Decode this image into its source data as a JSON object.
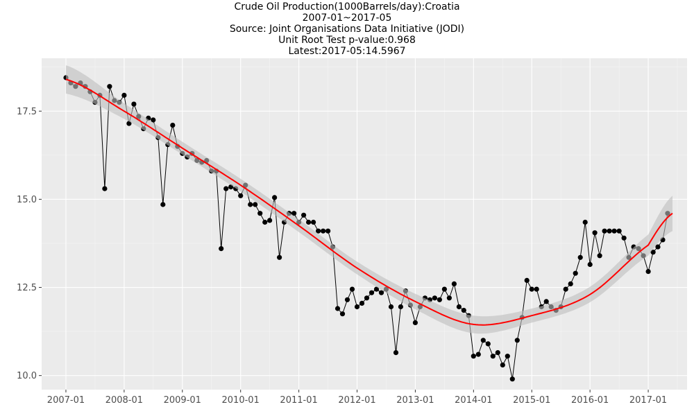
{
  "chart_data": {
    "type": "line",
    "title_lines": [
      "Crude Oil Production(1000Barrels/day):Croatia",
      "2007-01~2017-05",
      "Source: Joint Organisations Data Initiative (JODI)",
      "Unit Root Test p-value:0.968",
      "Latest:2017-05:14.5967"
    ],
    "xlabel": "",
    "ylabel": "",
    "x_ticks": [
      "2007-01",
      "2008-01",
      "2009-01",
      "2010-01",
      "2011-01",
      "2012-01",
      "2013-01",
      "2014-01",
      "2015-01",
      "2016-01",
      "2017-01"
    ],
    "y_ticks": [
      "10.0",
      "12.5",
      "15.0",
      "17.5"
    ],
    "xlim_months": [
      "2006-08",
      "2017-09"
    ],
    "ylim": [
      9.6,
      19.0
    ],
    "grid": true,
    "start": "2007-01",
    "observed": [
      18.45,
      18.3,
      18.2,
      18.3,
      18.2,
      18.05,
      17.75,
      17.95,
      15.3,
      18.2,
      17.8,
      17.75,
      17.95,
      17.15,
      17.7,
      17.35,
      17.0,
      17.3,
      17.25,
      16.75,
      14.85,
      16.55,
      17.1,
      16.5,
      16.3,
      16.2,
      16.3,
      16.1,
      16.05,
      16.1,
      15.8,
      15.8,
      13.6,
      15.3,
      15.35,
      15.3,
      15.1,
      15.4,
      14.85,
      14.85,
      14.6,
      14.35,
      14.4,
      15.05,
      13.35,
      14.35,
      14.6,
      14.6,
      14.35,
      14.55,
      14.35,
      14.35,
      14.1,
      14.1,
      14.1,
      13.65,
      11.9,
      11.75,
      12.15,
      12.45,
      11.95,
      12.05,
      12.2,
      12.35,
      12.45,
      12.35,
      12.45,
      11.95,
      10.65,
      11.95,
      12.4,
      12.0,
      11.5,
      11.95,
      12.2,
      12.15,
      12.2,
      12.15,
      12.45,
      12.2,
      12.6,
      11.95,
      11.85,
      11.7,
      10.55,
      10.6,
      11.0,
      10.9,
      10.55,
      10.65,
      10.3,
      10.55,
      9.9,
      11.0,
      11.65,
      12.7,
      12.45,
      12.45,
      11.95,
      12.1,
      11.95,
      11.85,
      11.95,
      12.45,
      12.6,
      12.9,
      13.35,
      14.35,
      13.15,
      14.05,
      13.4,
      14.1,
      14.1,
      14.1,
      14.1,
      13.9,
      13.35,
      13.65,
      13.6,
      13.4,
      12.95,
      13.5,
      13.65,
      13.85,
      14.6
    ],
    "trend_x_months": [
      0,
      12,
      24,
      36,
      48,
      60,
      72,
      84,
      96,
      108,
      120,
      125
    ],
    "trend_y": [
      18.4,
      17.5,
      16.45,
      15.4,
      14.25,
      13.05,
      12.1,
      11.45,
      11.7,
      12.3,
      13.7,
      14.6
    ],
    "trend_band_halfwidth": [
      0.4,
      0.22,
      0.18,
      0.18,
      0.18,
      0.18,
      0.22,
      0.25,
      0.2,
      0.22,
      0.3,
      0.5
    ],
    "colors": {
      "panel": "#ebebeb",
      "grid_major": "#ffffff",
      "grid_minor": "#f5f5f5",
      "series": "#000000",
      "trend": "#ff0000",
      "band": "#bebebe"
    }
  }
}
